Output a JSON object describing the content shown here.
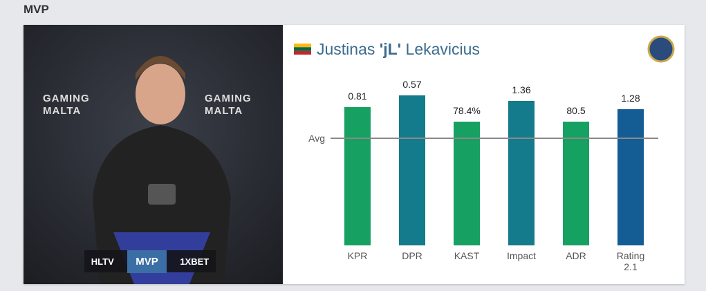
{
  "section_title": "MVP",
  "photo": {
    "banner": [
      "HLTV",
      "MVP",
      "1XBET"
    ],
    "backdrop": [
      "GAMING",
      "MALTA",
      "GAMING",
      "MALTA"
    ]
  },
  "player": {
    "first": "Justinas",
    "nick": "'jL'",
    "last": "Lekavicius"
  },
  "avg_label": "Avg",
  "chart_data": {
    "type": "bar",
    "categories": [
      "KPR",
      "DPR",
      "KAST",
      "Impact",
      "ADR",
      "Rating 2.1"
    ],
    "values": [
      0.81,
      0.57,
      78.4,
      1.36,
      80.5,
      1.28
    ],
    "value_labels": [
      "0.81",
      "0.57",
      "78.4%",
      "1.36",
      "80.5",
      "1.28"
    ],
    "colors": [
      "#16a062",
      "#137b8b",
      "#16a062",
      "#137b8b",
      "#16a062",
      "#145c94"
    ]
  }
}
